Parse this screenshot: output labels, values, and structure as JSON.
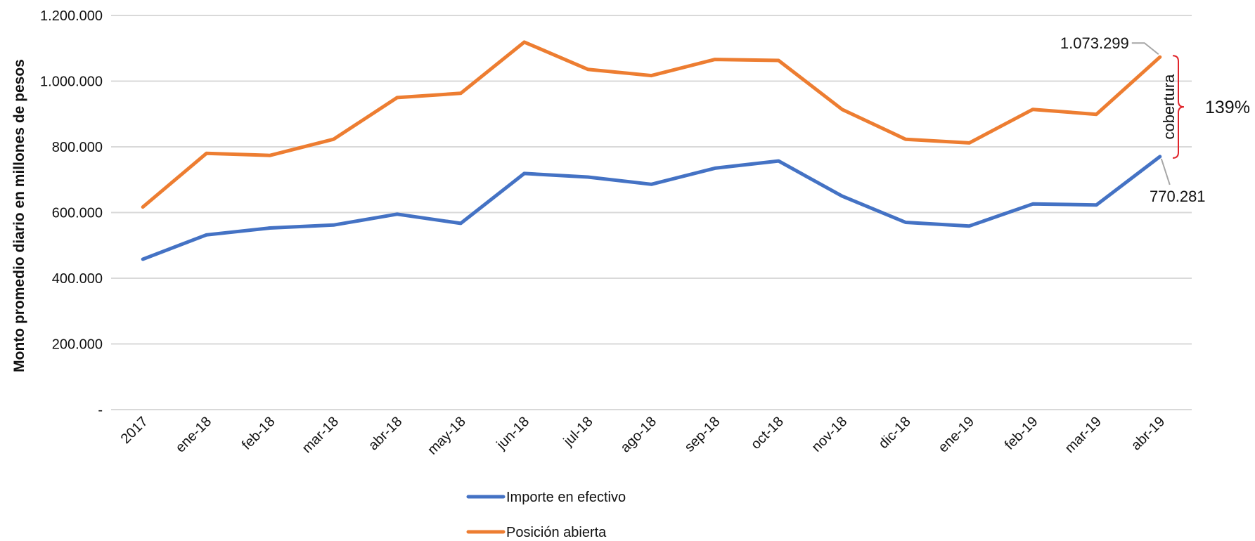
{
  "chart_data": {
    "type": "line",
    "ylabel": "Monto promedio diario en millones de pesos",
    "ylim": [
      0,
      1200000
    ],
    "yticks": [
      {
        "value": 0,
        "label": "-"
      },
      {
        "value": 200000,
        "label": "200.000"
      },
      {
        "value": 400000,
        "label": "400.000"
      },
      {
        "value": 600000,
        "label": "600.000"
      },
      {
        "value": 800000,
        "label": "800.000"
      },
      {
        "value": 1000000,
        "label": "1.000.000"
      },
      {
        "value": 1200000,
        "label": "1.200.000"
      }
    ],
    "grid": true,
    "legend_position": "bottom",
    "categories": [
      "2017",
      "ene-18",
      "feb-18",
      "mar-18",
      "abr-18",
      "may-18",
      "jun-18",
      "jul-18",
      "ago-18",
      "sep-18",
      "oct-18",
      "nov-18",
      "dic-18",
      "ene-19",
      "feb-19",
      "mar-19",
      "abr-19"
    ],
    "series": [
      {
        "name": "Importe en efectivo",
        "color": "#4472C4",
        "values": [
          458000,
          532000,
          553000,
          562000,
          595000,
          567000,
          719000,
          708000,
          686000,
          735000,
          757000,
          650000,
          570000,
          559000,
          626000,
          623000,
          770281
        ]
      },
      {
        "name": "Posición abierta",
        "color": "#ED7D31",
        "values": [
          617000,
          780000,
          774000,
          823000,
          950000,
          963000,
          1119000,
          1036000,
          1017000,
          1066000,
          1063000,
          914000,
          823000,
          812000,
          914000,
          899000,
          1073299
        ]
      }
    ],
    "annotations": {
      "top_value": "1.073.299",
      "bottom_value": "770.281",
      "bracket_label": "cobertura",
      "coverage_pct": "139%",
      "bracket_color": "#E0242B",
      "leader_color": "#A6A6A6"
    }
  }
}
